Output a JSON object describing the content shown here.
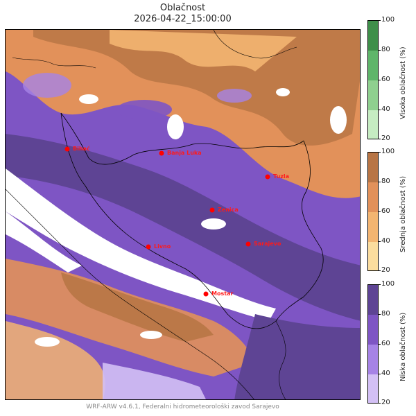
{
  "title": {
    "line1": "Oblačnost",
    "line2": "2026-04-22_15:00:00"
  },
  "footer": "WRF-ARW v4.6.1, Federalni hidrometeorološki zavod Sarajevo",
  "cities": [
    {
      "name": "Bihać"
    },
    {
      "name": "Banja Luka"
    },
    {
      "name": "Tuzla"
    },
    {
      "name": "Zenica"
    },
    {
      "name": "Livno"
    },
    {
      "name": "Sarajevo"
    },
    {
      "name": "Mostar"
    }
  ],
  "colorbars": [
    {
      "label": "Visoka oblačnost (%)",
      "ticks": [
        "100",
        "80",
        "60",
        "40",
        "20"
      ],
      "colors": [
        "#3f8f4a",
        "#5fb56a",
        "#8fd08f",
        "#c6ecc2"
      ]
    },
    {
      "label": "Srednja oblačnost (%)",
      "ticks": [
        "100",
        "80",
        "60",
        "40",
        "20"
      ],
      "colors": [
        "#b87545",
        "#e2915a",
        "#f3b571",
        "#fbdd9e"
      ]
    },
    {
      "label": "Niska oblačnost (%)",
      "ticks": [
        "100",
        "80",
        "60",
        "40",
        "20"
      ],
      "colors": [
        "#5e4494",
        "#7e55c4",
        "#a683e6",
        "#d3c0f5"
      ]
    }
  ],
  "colors": {
    "city_marker": "#ff0000",
    "border_line": "#000000"
  }
}
